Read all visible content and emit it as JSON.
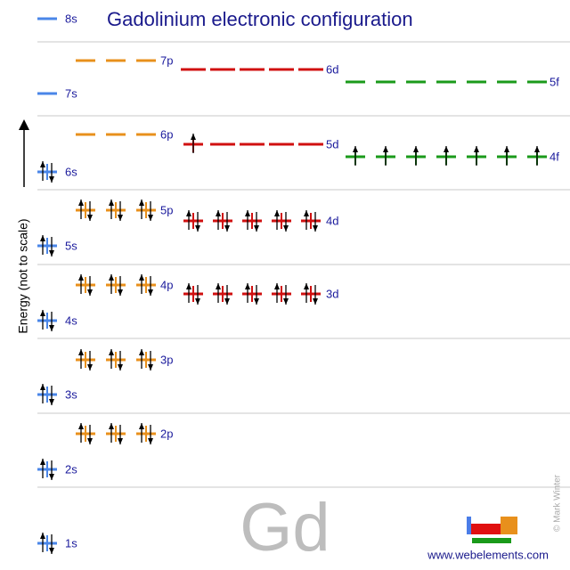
{
  "title": "Gadolinium electronic configuration",
  "axis_label": "Energy (not to scale)",
  "symbol": "Gd",
  "website": "www.webelements.com",
  "copyright": "© Mark Winter",
  "orbitals": [
    {
      "label": "8s",
      "electrons": 0
    },
    {
      "label": "7p",
      "electrons": 0
    },
    {
      "label": "6d",
      "electrons": 0
    },
    {
      "label": "5f",
      "electrons": 0
    },
    {
      "label": "7s",
      "electrons": 0
    },
    {
      "label": "6p",
      "electrons": 0
    },
    {
      "label": "5d",
      "electrons": 1
    },
    {
      "label": "4f",
      "electrons": 7
    },
    {
      "label": "6s",
      "electrons": 2
    },
    {
      "label": "5p",
      "electrons": 6
    },
    {
      "label": "4d",
      "electrons": 10
    },
    {
      "label": "5s",
      "electrons": 2
    },
    {
      "label": "4p",
      "electrons": 6
    },
    {
      "label": "3d",
      "electrons": 10
    },
    {
      "label": "4s",
      "electrons": 2
    },
    {
      "label": "3p",
      "electrons": 6
    },
    {
      "label": "3s",
      "electrons": 2
    },
    {
      "label": "2p",
      "electrons": 6
    },
    {
      "label": "2s",
      "electrons": 2
    },
    {
      "label": "1s",
      "electrons": 2
    }
  ]
}
